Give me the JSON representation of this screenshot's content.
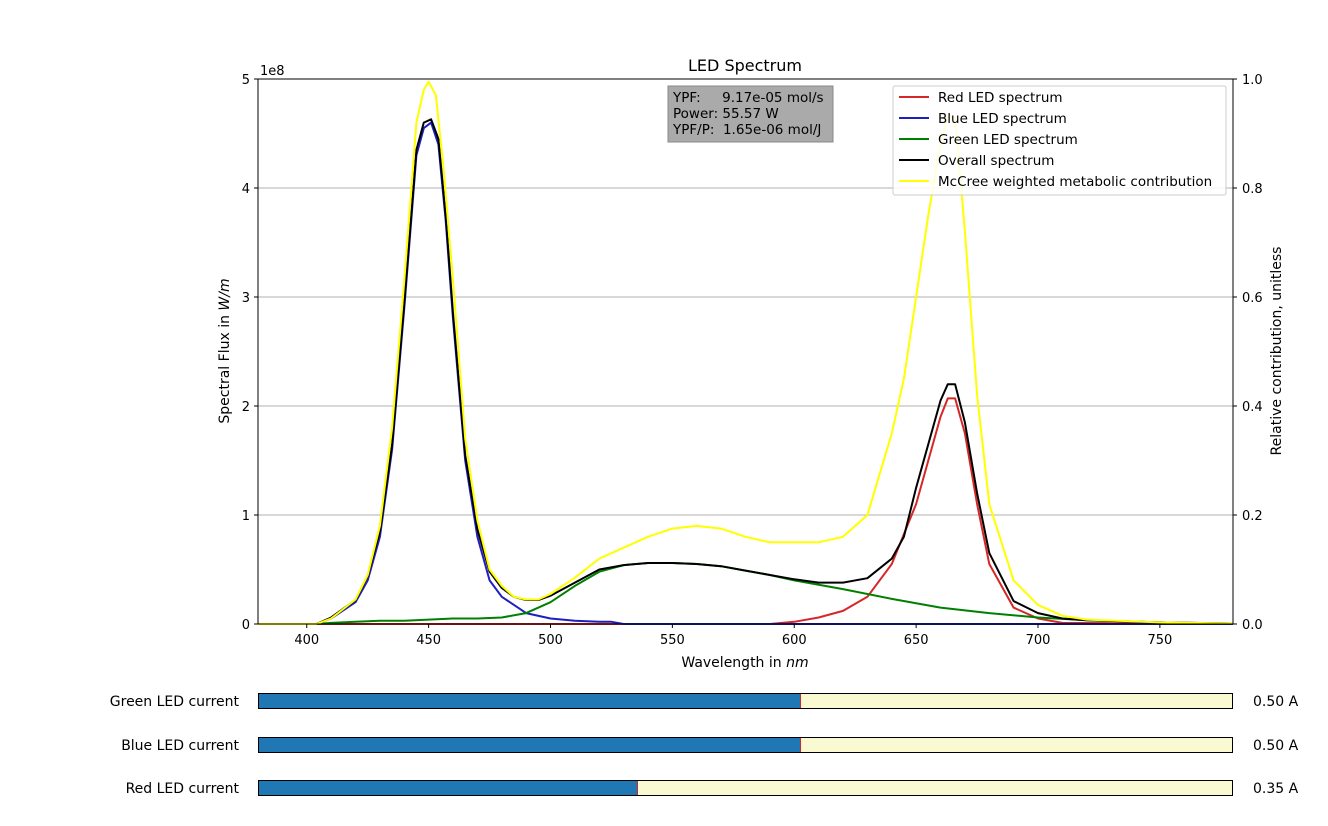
{
  "chart_data": {
    "type": "line",
    "title": "LED Spectrum",
    "xlabel_text": "Wavelength in ",
    "xlabel_unit": "nm",
    "ylabel_text": "Spectral Flux in ",
    "ylabel_unit": "W/m",
    "y2label": "Relative contribution, unitless",
    "xlim": [
      380,
      780
    ],
    "ylim": [
      0,
      5
    ],
    "y_exponent_label": "1e8",
    "y2lim": [
      0,
      1.0
    ],
    "xticks": [
      400,
      450,
      500,
      550,
      600,
      650,
      700,
      750
    ],
    "yticks": [
      0,
      1,
      2,
      3,
      4,
      5
    ],
    "y2ticks": [
      "0.0",
      "0.2",
      "0.4",
      "0.6",
      "0.8",
      "1.0"
    ],
    "grid": "horizontal",
    "legend_position": "upper-right",
    "info_box": [
      "YPF:     9.17e-05 mol/s",
      "Power: 55.57 W",
      "YPF/P:  1.65e-06 mol/J"
    ],
    "series": [
      {
        "name": "Red LED spectrum",
        "color": "#d62728",
        "axis": "left",
        "x": [
          380,
          590,
          600,
          610,
          620,
          630,
          640,
          650,
          655,
          660,
          663,
          666,
          670,
          675,
          680,
          690,
          700,
          710,
          780
        ],
        "y": [
          0,
          0,
          0.02,
          0.06,
          0.12,
          0.25,
          0.55,
          1.1,
          1.5,
          1.9,
          2.07,
          2.07,
          1.75,
          1.1,
          0.55,
          0.15,
          0.05,
          0.01,
          0
        ]
      },
      {
        "name": "Blue LED spectrum",
        "color": "#1f1fbf",
        "axis": "left",
        "x": [
          380,
          404,
          410,
          420,
          425,
          430,
          435,
          440,
          445,
          448,
          451,
          454,
          457,
          460,
          465,
          470,
          475,
          480,
          490,
          500,
          510,
          520,
          525,
          530,
          600,
          780
        ],
        "y": [
          0,
          0,
          0.05,
          0.2,
          0.4,
          0.8,
          1.6,
          2.9,
          4.3,
          4.55,
          4.6,
          4.4,
          3.7,
          2.8,
          1.5,
          0.8,
          0.4,
          0.25,
          0.1,
          0.05,
          0.03,
          0.02,
          0.02,
          0,
          0,
          0
        ]
      },
      {
        "name": "Green LED spectrum",
        "color": "#008000",
        "axis": "left",
        "x": [
          380,
          404,
          410,
          420,
          430,
          440,
          450,
          460,
          470,
          480,
          490,
          500,
          510,
          520,
          530,
          540,
          550,
          560,
          570,
          580,
          590,
          600,
          620,
          640,
          660,
          680,
          700,
          720,
          750,
          780
        ],
        "y": [
          0,
          0,
          0.01,
          0.02,
          0.03,
          0.03,
          0.04,
          0.05,
          0.05,
          0.06,
          0.1,
          0.2,
          0.35,
          0.48,
          0.54,
          0.56,
          0.56,
          0.55,
          0.53,
          0.49,
          0.45,
          0.4,
          0.32,
          0.23,
          0.15,
          0.1,
          0.06,
          0.035,
          0.015,
          0.005
        ]
      },
      {
        "name": "Overall spectrum",
        "color": "#000000",
        "axis": "left",
        "x": [
          380,
          404,
          410,
          420,
          425,
          430,
          435,
          440,
          445,
          448,
          451,
          454,
          457,
          460,
          465,
          470,
          475,
          480,
          485,
          490,
          495,
          500,
          510,
          520,
          530,
          540,
          550,
          560,
          570,
          580,
          590,
          600,
          610,
          620,
          630,
          640,
          645,
          650,
          655,
          660,
          663,
          666,
          670,
          675,
          680,
          690,
          700,
          710,
          720,
          750,
          780
        ],
        "y": [
          0,
          0,
          0.06,
          0.22,
          0.44,
          0.85,
          1.65,
          2.95,
          4.35,
          4.6,
          4.63,
          4.45,
          3.75,
          2.85,
          1.55,
          0.87,
          0.48,
          0.33,
          0.25,
          0.22,
          0.22,
          0.26,
          0.38,
          0.5,
          0.54,
          0.56,
          0.56,
          0.55,
          0.53,
          0.49,
          0.45,
          0.41,
          0.38,
          0.38,
          0.42,
          0.6,
          0.8,
          1.25,
          1.65,
          2.05,
          2.2,
          2.2,
          1.85,
          1.2,
          0.65,
          0.21,
          0.1,
          0.05,
          0.035,
          0.015,
          0.005
        ]
      },
      {
        "name": "McCree weighted metabolic contribution",
        "color": "#ffff00",
        "axis": "right",
        "x": [
          380,
          404,
          410,
          420,
          425,
          430,
          435,
          440,
          445,
          448,
          450,
          453,
          456,
          460,
          465,
          470,
          475,
          480,
          485,
          490,
          495,
          500,
          510,
          520,
          530,
          540,
          550,
          560,
          570,
          580,
          590,
          600,
          610,
          620,
          630,
          640,
          645,
          650,
          655,
          660,
          663,
          666,
          670,
          675,
          680,
          690,
          700,
          710,
          720,
          750,
          780
        ],
        "y": [
          0,
          0,
          0.01,
          0.045,
          0.09,
          0.18,
          0.36,
          0.63,
          0.92,
          0.98,
          0.995,
          0.97,
          0.84,
          0.63,
          0.34,
          0.19,
          0.1,
          0.07,
          0.05,
          0.045,
          0.045,
          0.055,
          0.085,
          0.12,
          0.14,
          0.16,
          0.175,
          0.18,
          0.175,
          0.16,
          0.15,
          0.15,
          0.15,
          0.16,
          0.2,
          0.35,
          0.45,
          0.6,
          0.75,
          0.88,
          0.93,
          0.93,
          0.72,
          0.42,
          0.22,
          0.08,
          0.035,
          0.015,
          0.008,
          0.003,
          0.001
        ]
      }
    ]
  },
  "sliders": [
    {
      "label": "Green LED current",
      "value_text": "0.50 A",
      "fraction": 0.556
    },
    {
      "label": "Blue LED current",
      "value_text": "0.50 A",
      "fraction": 0.556
    },
    {
      "label": "Red LED current",
      "value_text": "0.35 A",
      "fraction": 0.389
    }
  ]
}
